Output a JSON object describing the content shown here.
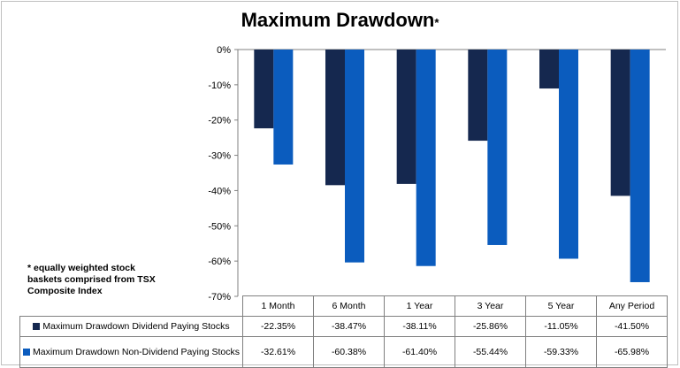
{
  "title": "Maximum Drawdown",
  "title_asterisk": "*",
  "footnote": "* equally weighted stock baskets comprised from TSX Composite Index",
  "colors": {
    "series1": "#15284f",
    "series2": "#0b5cbe"
  },
  "chart_data": {
    "type": "bar",
    "title": "Maximum Drawdown*",
    "categories": [
      "1 Month",
      "6 Month",
      "1 Year",
      "3 Year",
      "5 Year",
      "Any Period"
    ],
    "ylim": [
      -70,
      0
    ],
    "yticks": [
      "0%",
      "-10%",
      "-20%",
      "-30%",
      "-40%",
      "-50%",
      "-60%",
      "-70%"
    ],
    "grid": false,
    "legend": "data-table-below",
    "series": [
      {
        "name": "Maximum Drawdown Dividend Paying Stocks",
        "values": [
          -22.35,
          -38.47,
          -38.11,
          -25.86,
          -11.05,
          -41.5
        ],
        "labels": [
          "-22.35%",
          "-38.47%",
          "-38.11%",
          "-25.86%",
          "-11.05%",
          "-41.50%"
        ]
      },
      {
        "name": "Maximum Drawdown Non-Dividend Paying Stocks",
        "values": [
          -32.61,
          -60.38,
          -61.4,
          -55.44,
          -59.33,
          -65.98
        ],
        "labels": [
          "-32.61%",
          "-60.38%",
          "-61.40%",
          "-55.44%",
          "-59.33%",
          "-65.98%"
        ]
      }
    ]
  }
}
